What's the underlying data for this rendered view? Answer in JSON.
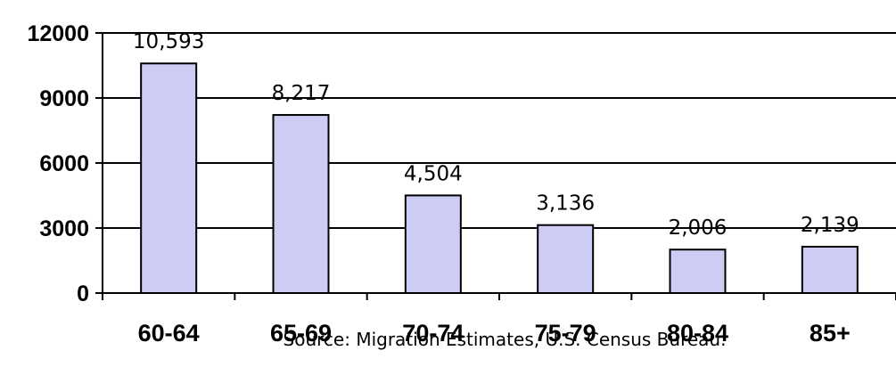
{
  "chart_data": {
    "type": "bar",
    "categories": [
      "60-64",
      "65-69",
      "70-74",
      "75-79",
      "80-84",
      "85+"
    ],
    "values": [
      10593,
      8217,
      4504,
      3136,
      2006,
      2139
    ],
    "data_labels": [
      "10,593",
      "8,217",
      "4,504",
      "3,136",
      "2,006",
      "2,139"
    ],
    "title": "",
    "xlabel": "",
    "ylabel": "",
    "ylim": [
      0,
      12000
    ],
    "yticks": [
      0,
      3000,
      6000,
      9000,
      12000
    ],
    "ytick_labels": [
      "0",
      "3000",
      "6000",
      "9000",
      "12000"
    ],
    "grid": true,
    "bar_color": "#ccccf5",
    "source_note": "Source:  Migration Estimates, U.S. Census Bureau."
  }
}
